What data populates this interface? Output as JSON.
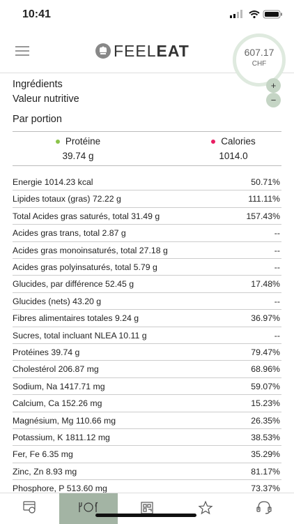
{
  "status_bar": {
    "time": "10:41"
  },
  "header": {
    "brand_light": "FEEL",
    "brand_bold": "EAT",
    "balance": "607.17",
    "currency": "CHF"
  },
  "sections": {
    "ingredients": "Ingrédients",
    "nutrition": "Valeur nutritive",
    "per_portion": "Par portion"
  },
  "summary": [
    {
      "label": "Protéine",
      "value": "39.74 g"
    },
    {
      "label": "Calories",
      "value": "1014.0"
    }
  ],
  "rows": [
    [
      "Energie 1014.23 kcal",
      "50.71%"
    ],
    [
      "Lipides totaux (gras) 72.22 g",
      "111.11%"
    ],
    [
      "Total Acides gras saturés, total 31.49 g",
      "157.43%"
    ],
    [
      "Acides gras trans, total 2.87 g",
      "--"
    ],
    [
      "Acides gras monoinsaturés, total 27.18 g",
      "--"
    ],
    [
      "Acides gras polyinsaturés, total 5.79 g",
      "--"
    ],
    [
      "Glucides, par différence 52.45 g",
      "17.48%"
    ],
    [
      "Glucides (nets) 43.20 g",
      "--"
    ],
    [
      "Fibres alimentaires totales 9.24 g",
      "36.97%"
    ],
    [
      "Sucres, total incluant NLEA 10.11 g",
      "--"
    ],
    [
      "Protéines 39.74 g",
      "79.47%"
    ],
    [
      "Cholestérol 206.87 mg",
      "68.96%"
    ],
    [
      "Sodium, Na 1417.71 mg",
      "59.07%"
    ],
    [
      "Calcium, Ca 152.26 mg",
      "15.23%"
    ],
    [
      "Magnésium, Mg 110.66 mg",
      "26.35%"
    ],
    [
      "Potassium, K 1811.12 mg",
      "38.53%"
    ],
    [
      "Fer, Fe 6.35 mg",
      "35.29%"
    ],
    [
      "Zinc, Zn 8.93 mg",
      "81.17%"
    ],
    [
      "Phosphore, P 513.60 mg",
      "73.37%"
    ]
  ]
}
